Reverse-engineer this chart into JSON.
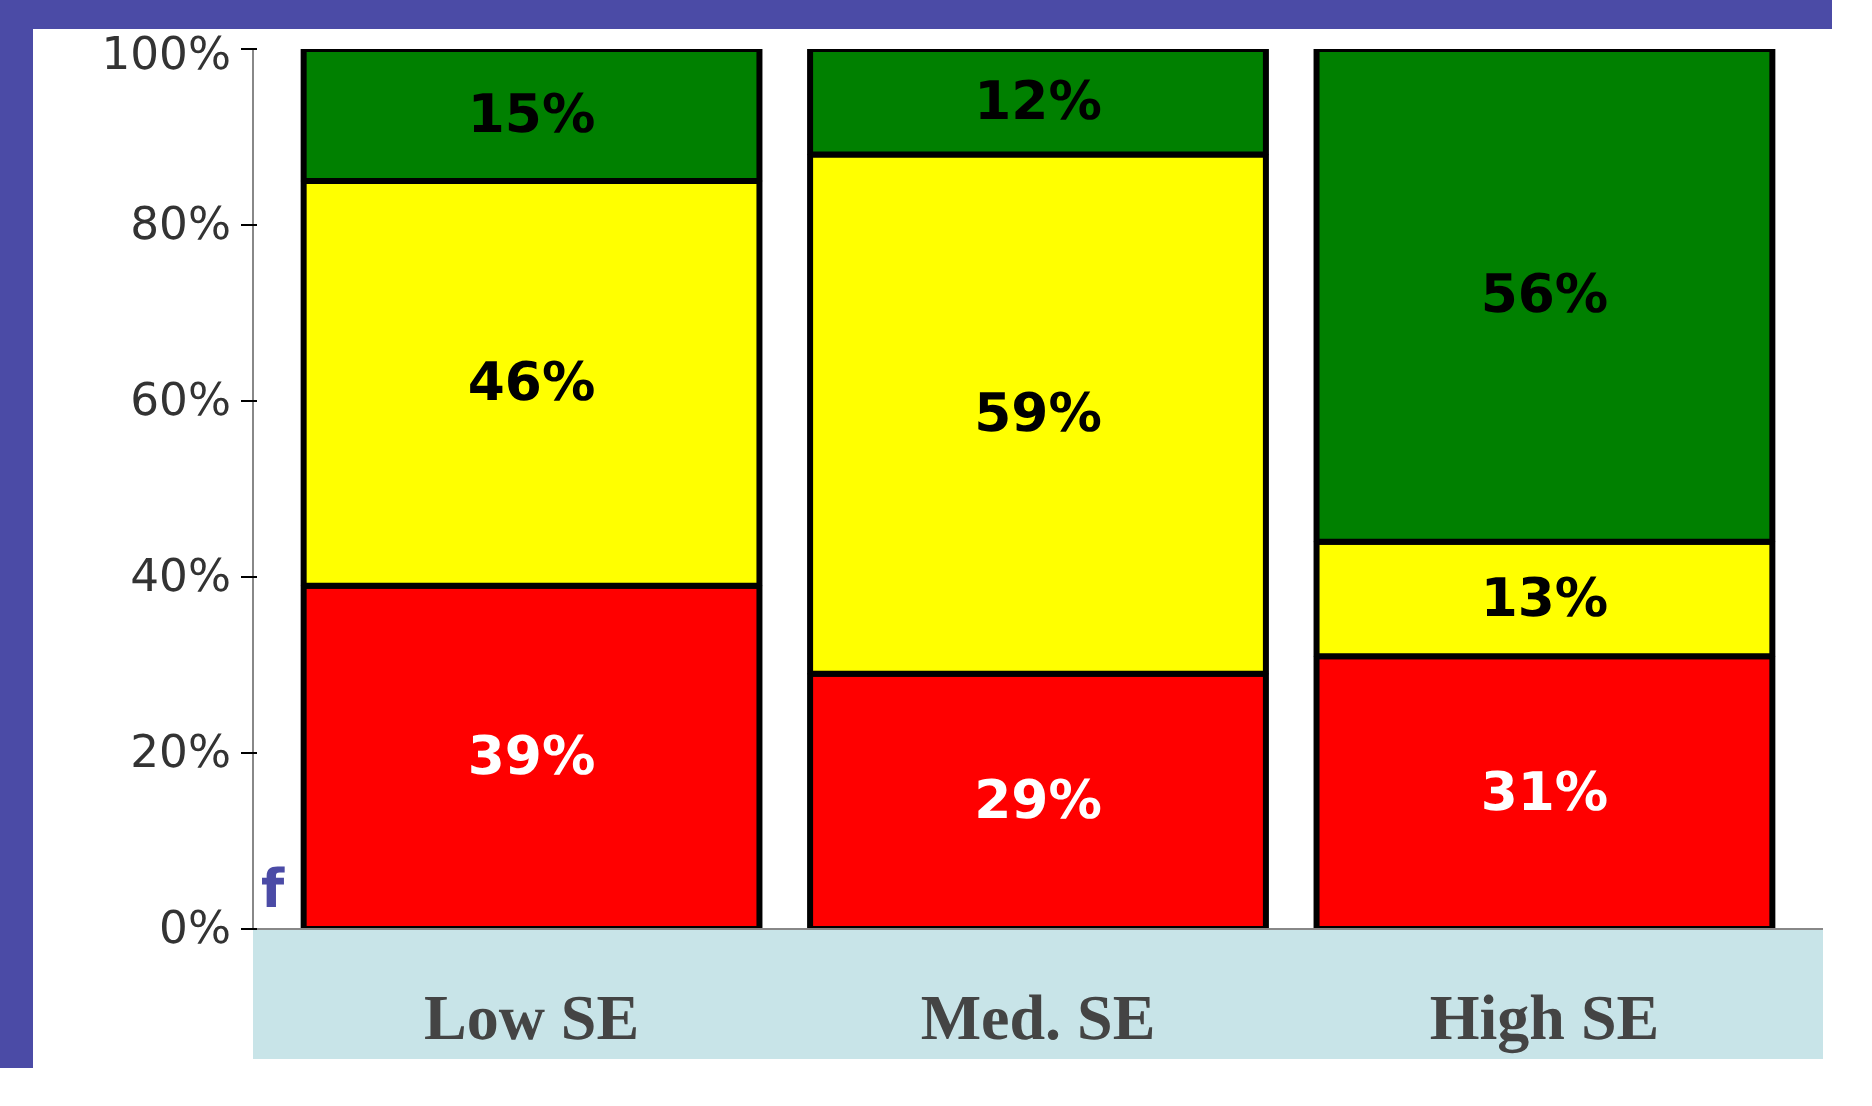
{
  "chart_data": {
    "type": "bar",
    "stacked": true,
    "categories": [
      "Low SE",
      "Med. SE",
      "High SE"
    ],
    "series": [
      {
        "color": "#ff0000",
        "values": [
          39,
          29,
          31
        ]
      },
      {
        "color": "#ffff00",
        "values": [
          46,
          59,
          13
        ]
      },
      {
        "color": "#008000",
        "values": [
          15,
          12,
          56
        ]
      }
    ],
    "ylim": [
      0,
      100
    ],
    "yticks": [
      {
        "value": 0,
        "label": "0%"
      },
      {
        "value": 20,
        "label": "20%"
      },
      {
        "value": 40,
        "label": "40%"
      },
      {
        "value": 60,
        "label": "60%"
      },
      {
        "value": 80,
        "label": "80%"
      },
      {
        "value": 100,
        "label": "100%"
      }
    ],
    "value_labels": [
      [
        "39%",
        "29%",
        "31%"
      ],
      [
        "46%",
        "59%",
        "13%"
      ],
      [
        "15%",
        "12%",
        "56%"
      ]
    ],
    "grid": false,
    "annotations": [
      "f"
    ]
  }
}
